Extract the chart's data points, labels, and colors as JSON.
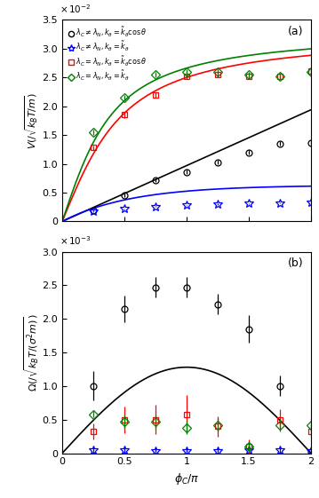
{
  "xlim": [
    0,
    2
  ],
  "ylim_a": [
    0,
    0.035
  ],
  "ylim_b": [
    0,
    0.003
  ],
  "phi_data": [
    0.25,
    0.5,
    0.75,
    1.0,
    1.25,
    1.5,
    1.75,
    2.0
  ],
  "legend_labels": [
    "$\\lambda_C \\neq \\lambda_N, k_\\theta = \\tilde{k}_\\theta \\cos\\theta$",
    "$\\lambda_C \\neq \\lambda_N, k_\\theta = \\tilde{k}_\\theta$",
    "$\\lambda_C = \\lambda_N, k_\\theta = \\tilde{k}_\\theta \\cos\\theta$",
    "$\\lambda_C = \\lambda_N, k_\\theta = \\tilde{k}_\\theta$"
  ],
  "Va_black": [
    0.0019,
    0.0045,
    0.0071,
    0.0086,
    0.0103,
    0.012,
    0.0135,
    0.0137
  ],
  "Va_black_err": [
    0.0002,
    0.0003,
    0.0003,
    0.0004,
    0.0004,
    0.0004,
    0.0004,
    0.0004
  ],
  "Va_blue": [
    0.0017,
    0.0022,
    0.0026,
    0.0028,
    0.003,
    0.0031,
    0.0032,
    0.0033
  ],
  "Va_blue_err": [
    0.0001,
    0.0001,
    0.0001,
    0.0001,
    0.0001,
    0.0001,
    0.0001,
    0.0001
  ],
  "Va_red": [
    0.0128,
    0.0185,
    0.022,
    0.0252,
    0.0255,
    0.0252,
    0.0252,
    0.0262
  ],
  "Va_red_err": [
    0.0004,
    0.0005,
    0.0005,
    0.0005,
    0.0005,
    0.0005,
    0.0005,
    0.0005
  ],
  "Va_green": [
    0.0155,
    0.0215,
    0.0255,
    0.026,
    0.026,
    0.0255,
    0.0252,
    0.026
  ],
  "Va_green_err": [
    0.0004,
    0.0005,
    0.0005,
    0.0005,
    0.0005,
    0.0005,
    0.0005,
    0.0005
  ],
  "Ob_black": [
    0.001,
    0.00215,
    0.00247,
    0.00247,
    0.00222,
    0.00185,
    0.001,
    2e-05
  ],
  "Ob_black_err": [
    0.00022,
    0.0002,
    0.00015,
    0.00015,
    0.00015,
    0.0002,
    0.00015,
    5e-05
  ],
  "Ob_blue": [
    5e-05,
    5e-05,
    3e-05,
    3e-05,
    3e-05,
    5e-05,
    5e-05,
    3e-05
  ],
  "Ob_blue_err": [
    5e-05,
    5e-05,
    5e-05,
    5e-05,
    5e-05,
    5e-05,
    5e-05,
    5e-05
  ],
  "Ob_red": [
    0.00032,
    0.0005,
    0.0005,
    0.00058,
    0.0004,
    0.0001,
    0.0005,
    0.00033
  ],
  "Ob_red_err": [
    0.00012,
    0.0002,
    0.00022,
    0.00028,
    0.00015,
    0.0001,
    0.00015,
    0.0001
  ],
  "Ob_green": [
    0.00058,
    0.00047,
    0.00047,
    0.00038,
    0.00042,
    0.0001,
    0.00042,
    0.00042
  ],
  "Ob_green_err": [
    5e-05,
    0.0001,
    0.0001,
    0.0001,
    0.0001,
    5e-05,
    0.0001,
    0.0001
  ],
  "line_b_black_amp": 0.00128
}
